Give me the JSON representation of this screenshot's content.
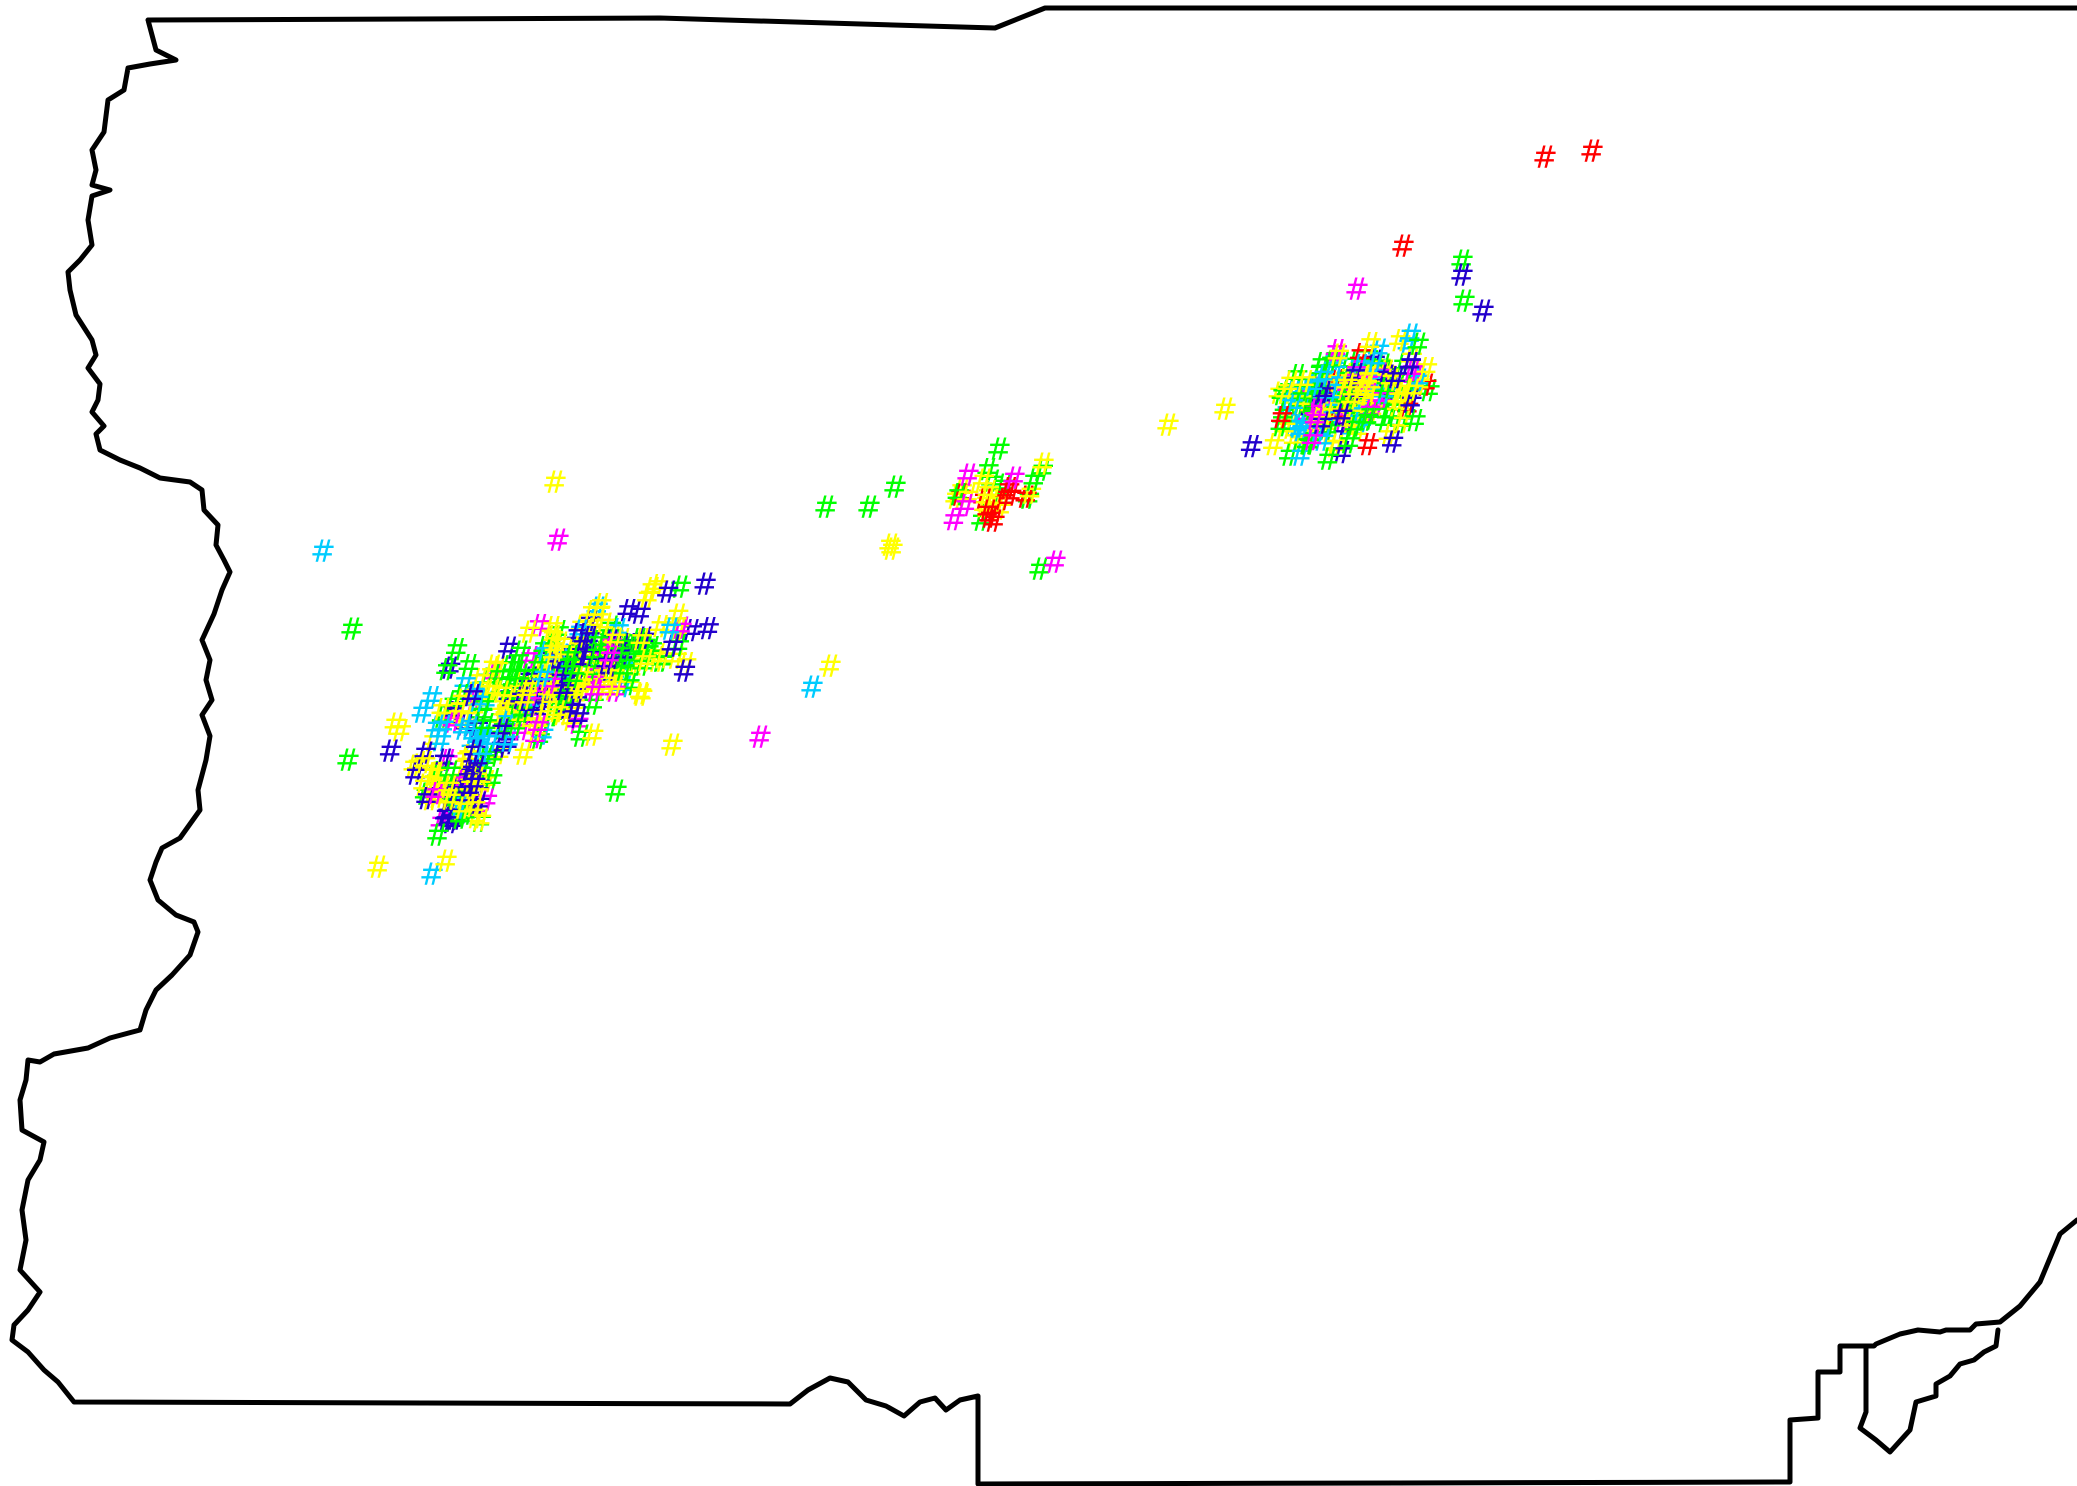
{
  "map": {
    "boundary": "county-outline",
    "marker_symbol": "#",
    "marker_colors": {
      "red": "#ff0000",
      "yellow": "#ffff00",
      "green": "#00ff00",
      "cyan": "#00ccff",
      "blue": "#2200cc",
      "magenta": "#ff00ff"
    }
  }
}
